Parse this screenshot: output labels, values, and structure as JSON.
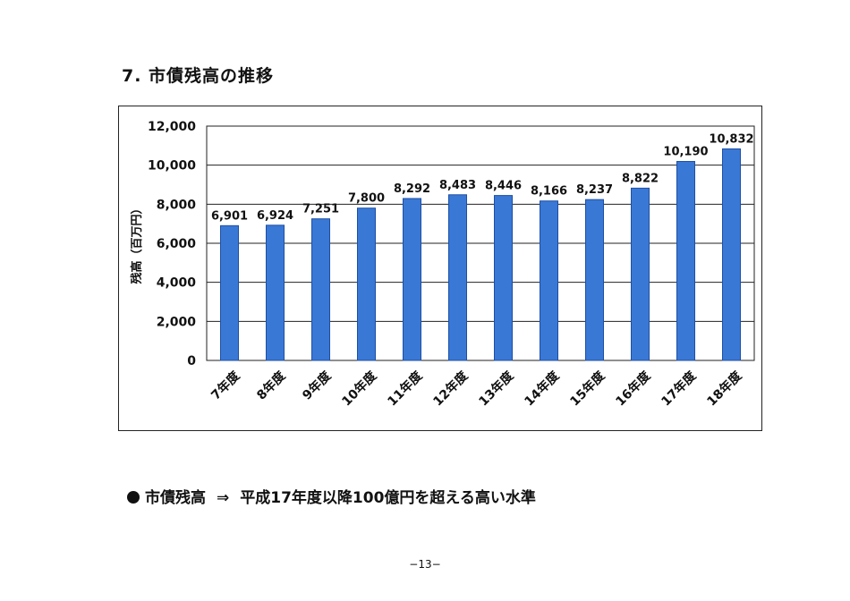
{
  "section_title": "7. 市債残高の推移",
  "chart_data": {
    "type": "bar",
    "title": "",
    "xlabel": "",
    "ylabel": "残高（百万円）",
    "categories": [
      "7年度",
      "8年度",
      "9年度",
      "10年度",
      "11年度",
      "12年度",
      "13年度",
      "14年度",
      "15年度",
      "16年度",
      "17年度",
      "18年度"
    ],
    "values": [
      6901,
      6924,
      7251,
      7800,
      8292,
      8483,
      8446,
      8166,
      8237,
      8822,
      10190,
      10832
    ],
    "value_labels": [
      "6,901",
      "6,924",
      "7,251",
      "7,800",
      "8,292",
      "8,483",
      "8,446",
      "8,166",
      "8,237",
      "8,822",
      "10,190",
      "10,832"
    ],
    "yticks": [
      0,
      2000,
      4000,
      6000,
      8000,
      10000,
      12000
    ],
    "ytick_labels": [
      "0",
      "2,000",
      "4,000",
      "6,000",
      "8,000",
      "10,000",
      "12,000"
    ],
    "ylim": [
      0,
      12000
    ],
    "grid": true,
    "bar_color": "#3a78d6"
  },
  "summary": {
    "subject": "市債残高",
    "arrow": "⇒",
    "statement": "平成17年度以降100億円を超える高い水準"
  },
  "page_number": "−13−"
}
